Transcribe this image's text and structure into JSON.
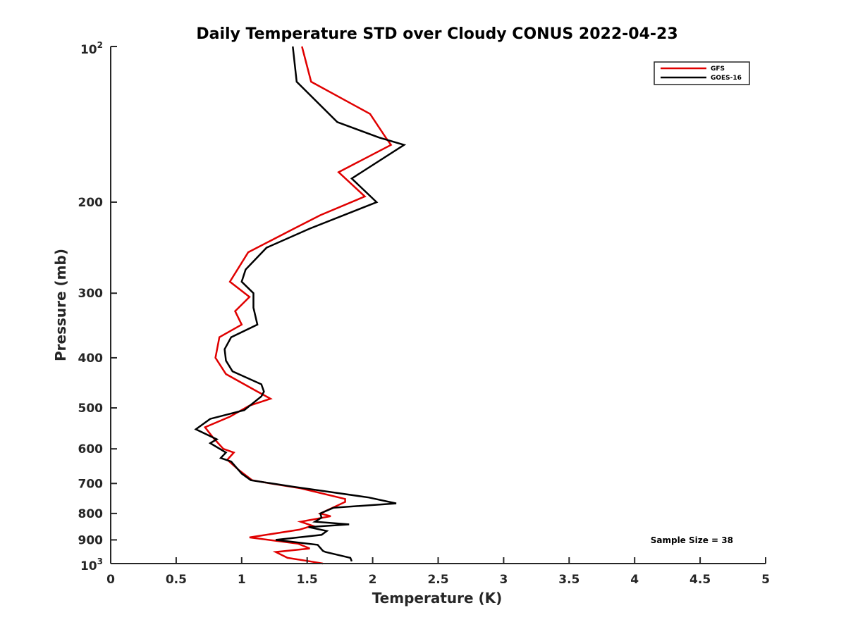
{
  "chart_data": {
    "type": "line",
    "title": "Daily Temperature STD over Cloudy CONUS 2022-04-23",
    "xlabel": "Temperature (K)",
    "ylabel": "Pressure (mb)",
    "xlim": [
      0,
      5
    ],
    "ylim": [
      100,
      1000
    ],
    "yscale": "log",
    "y_reversed": true,
    "xticks": [
      "0",
      "0.5",
      "1",
      "1.5",
      "2",
      "2.5",
      "3",
      "3.5",
      "4",
      "4.5",
      "5"
    ],
    "xtick_values": [
      0,
      0.5,
      1,
      1.5,
      2,
      2.5,
      3,
      3.5,
      4,
      4.5,
      5
    ],
    "yticks": [
      "200",
      "300",
      "400",
      "500",
      "600",
      "700",
      "800",
      "900"
    ],
    "ytick_values": [
      200,
      300,
      400,
      500,
      600,
      700,
      800,
      900
    ],
    "ytick_top": {
      "base": "10",
      "exp": "2",
      "value": 100
    },
    "ytick_bottom": {
      "base": "10",
      "exp": "3",
      "value": 1000
    },
    "legend_position": "top-right",
    "grid": false,
    "annotation": "Sample Size = 38",
    "series": [
      {
        "name": "GFS",
        "color": "#e00000",
        "points": [
          [
            1.46,
            100
          ],
          [
            1.53,
            117
          ],
          [
            1.98,
            135
          ],
          [
            2.1,
            150
          ],
          [
            2.14,
            155
          ],
          [
            1.74,
            175
          ],
          [
            1.94,
            195
          ],
          [
            1.6,
            212
          ],
          [
            1.4,
            225
          ],
          [
            1.05,
            250
          ],
          [
            0.91,
            285
          ],
          [
            1.06,
            305
          ],
          [
            0.95,
            325
          ],
          [
            1.0,
            345
          ],
          [
            0.83,
            365
          ],
          [
            0.8,
            400
          ],
          [
            0.88,
            430
          ],
          [
            1.12,
            465
          ],
          [
            1.22,
            480
          ],
          [
            1.06,
            495
          ],
          [
            0.91,
            520
          ],
          [
            0.72,
            545
          ],
          [
            0.78,
            570
          ],
          [
            0.86,
            600
          ],
          [
            0.94,
            610
          ],
          [
            0.89,
            630
          ],
          [
            0.98,
            660
          ],
          [
            1.08,
            690
          ],
          [
            1.22,
            700
          ],
          [
            1.45,
            715
          ],
          [
            1.79,
            750
          ],
          [
            1.79,
            760
          ],
          [
            1.6,
            800
          ],
          [
            1.68,
            810
          ],
          [
            1.45,
            830
          ],
          [
            1.54,
            845
          ],
          [
            1.44,
            860
          ],
          [
            1.06,
            890
          ],
          [
            1.43,
            915
          ],
          [
            1.52,
            935
          ],
          [
            1.26,
            950
          ],
          [
            1.35,
            975
          ],
          [
            1.52,
            990
          ],
          [
            1.62,
            1000
          ]
        ]
      },
      {
        "name": "GOES-16",
        "color": "#000000",
        "points": [
          [
            1.39,
            100
          ],
          [
            1.42,
            117
          ],
          [
            1.73,
            140
          ],
          [
            2.05,
            150
          ],
          [
            2.24,
            155
          ],
          [
            1.84,
            180
          ],
          [
            2.03,
            200
          ],
          [
            1.52,
            225
          ],
          [
            1.19,
            245
          ],
          [
            1.03,
            270
          ],
          [
            1.0,
            285
          ],
          [
            1.09,
            300
          ],
          [
            1.09,
            320
          ],
          [
            1.12,
            345
          ],
          [
            0.92,
            365
          ],
          [
            0.87,
            385
          ],
          [
            0.88,
            405
          ],
          [
            0.93,
            425
          ],
          [
            1.15,
            450
          ],
          [
            1.17,
            465
          ],
          [
            1.15,
            475
          ],
          [
            1.02,
            505
          ],
          [
            0.76,
            525
          ],
          [
            0.65,
            550
          ],
          [
            0.81,
            575
          ],
          [
            0.76,
            585
          ],
          [
            0.88,
            610
          ],
          [
            0.84,
            625
          ],
          [
            0.92,
            635
          ],
          [
            1.0,
            670
          ],
          [
            1.07,
            690
          ],
          [
            1.39,
            710
          ],
          [
            1.97,
            745
          ],
          [
            2.18,
            765
          ],
          [
            1.7,
            780
          ],
          [
            1.6,
            800
          ],
          [
            1.61,
            815
          ],
          [
            1.56,
            830
          ],
          [
            1.82,
            840
          ],
          [
            1.51,
            850
          ],
          [
            1.65,
            865
          ],
          [
            1.61,
            880
          ],
          [
            1.26,
            900
          ],
          [
            1.58,
            920
          ],
          [
            1.62,
            945
          ],
          [
            1.64,
            950
          ],
          [
            1.83,
            975
          ],
          [
            1.84,
            990
          ]
        ]
      }
    ]
  }
}
